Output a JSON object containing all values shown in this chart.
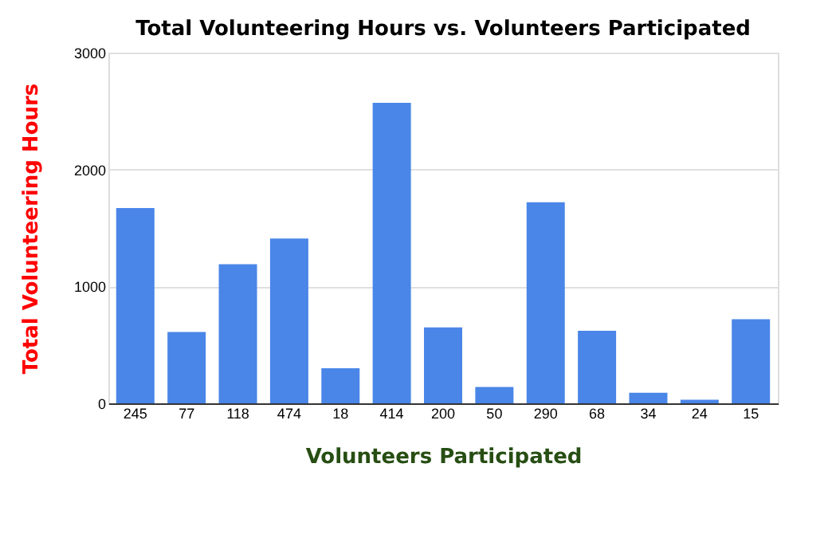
{
  "chart_data": {
    "type": "bar",
    "title": "Total  Volunteering Hours  vs. Volunteers Participated",
    "xlabel": "Volunteers Participated",
    "ylabel": "Total  Volunteering Hours",
    "categories": [
      "245",
      "77",
      "118",
      "474",
      "18",
      "414",
      "200",
      "50",
      "290",
      "68",
      "34",
      "24",
      "15"
    ],
    "values": [
      1670,
      610,
      1190,
      1410,
      300,
      2570,
      650,
      140,
      1720,
      620,
      90,
      30,
      720
    ],
    "color": "#4a86e8",
    "ylim": [
      0,
      3000
    ],
    "yticks": [
      0,
      1000,
      2000,
      3000
    ],
    "grid": "y"
  }
}
